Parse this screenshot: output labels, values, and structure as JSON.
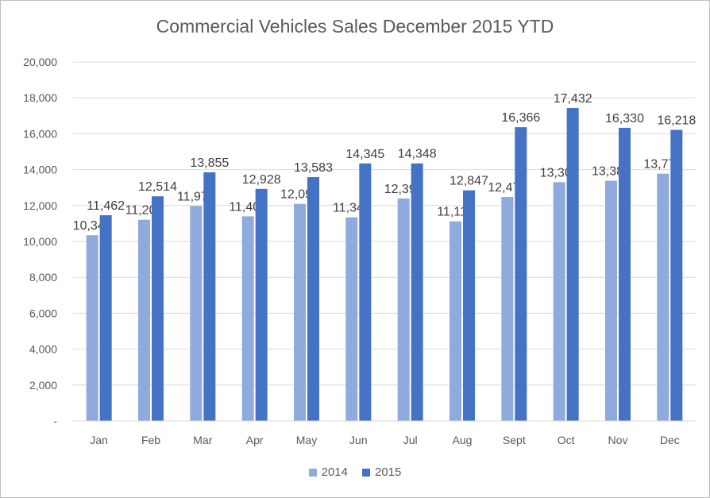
{
  "chart_data": {
    "type": "bar",
    "title": "Commercial Vehicles Sales December 2015 YTD",
    "categories": [
      "Jan",
      "Feb",
      "Mar",
      "Apr",
      "May",
      "Jun",
      "Jul",
      "Aug",
      "Sept",
      "Oct",
      "Nov",
      "Dec"
    ],
    "series": [
      {
        "name": "2014",
        "color": "#8faadc",
        "values": [
          10344,
          11208,
          11975,
          11400,
          12091,
          11344,
          12391,
          11119,
          12477,
          13303,
          13382,
          13775
        ],
        "labels": [
          "10,344",
          "11,208",
          "11,975",
          "11,400",
          "12,091",
          "11,344",
          "12,391",
          "11,119",
          "12,477",
          "13,303",
          "13,382",
          "13,775"
        ]
      },
      {
        "name": "2015",
        "color": "#4472c4",
        "values": [
          11462,
          12514,
          13855,
          12928,
          13583,
          14345,
          14348,
          12847,
          16366,
          17432,
          16330,
          16218
        ],
        "labels": [
          "11,462",
          "12,514",
          "13,855",
          "12,928",
          "13,583",
          "14,345",
          "14,348",
          "12,847",
          "16,366",
          "17,432",
          "16,330",
          "16,218"
        ]
      }
    ],
    "ylim": [
      0,
      20000
    ],
    "yticks": [
      0,
      2000,
      4000,
      6000,
      8000,
      10000,
      12000,
      14000,
      16000,
      18000,
      20000
    ],
    "ytick_labels": [
      "-",
      "2,000",
      "4,000",
      "6,000",
      "8,000",
      "10,000",
      "12,000",
      "14,000",
      "16,000",
      "18,000",
      "20,000"
    ],
    "grid": true,
    "legend_position": "bottom"
  }
}
